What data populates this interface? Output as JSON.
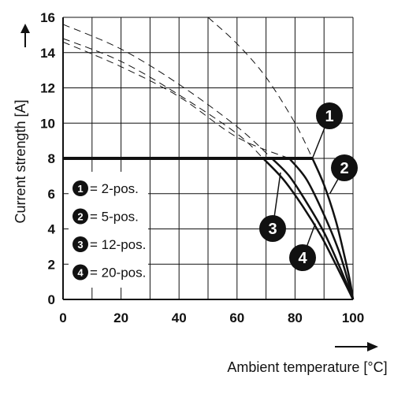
{
  "chart_data": {
    "type": "line",
    "title": "",
    "xlabel": "Ambient temperature [°C]",
    "ylabel": "Current strength [A]",
    "xlim": [
      0,
      100
    ],
    "ylim": [
      0,
      16
    ],
    "x_ticks": [
      0,
      20,
      40,
      60,
      80,
      100
    ],
    "y_ticks": [
      0,
      2,
      4,
      6,
      8,
      10,
      12,
      14,
      16
    ],
    "grid": true,
    "legend_position": "bottom-left",
    "legend": [
      {
        "marker": "1",
        "label": "= 2-pos."
      },
      {
        "marker": "2",
        "label": "= 5-pos."
      },
      {
        "marker": "3",
        "label": "= 12-pos."
      },
      {
        "marker": "4",
        "label": "= 20-pos."
      }
    ],
    "limit": {
      "x": [
        0,
        69
      ],
      "y": 8
    },
    "series": [
      {
        "marker": "1",
        "x": [
          0,
          86,
          90,
          94,
          97,
          99,
          100
        ],
        "y": [
          8,
          8,
          6.5,
          4.5,
          2.5,
          1,
          0
        ]
      },
      {
        "marker": "2",
        "x": [
          0,
          78,
          84,
          90,
          95,
          98,
          100
        ],
        "y": [
          8,
          8,
          6.8,
          4.8,
          2.8,
          1.2,
          0
        ]
      },
      {
        "marker": "3",
        "x": [
          0,
          72,
          78,
          84,
          90,
          95,
          100
        ],
        "y": [
          8,
          8,
          7,
          5.5,
          3.8,
          2,
          0
        ]
      },
      {
        "marker": "4",
        "x": [
          0,
          69,
          76,
          83,
          89,
          94,
          100
        ],
        "y": [
          8,
          8,
          6.8,
          5.2,
          3.6,
          2,
          0
        ]
      }
    ],
    "derating_curves_dashed": [
      {
        "x": [
          0,
          20,
          40,
          60,
          72
        ],
        "y": [
          15.6,
          14.2,
          12.2,
          9.8,
          8
        ]
      },
      {
        "x": [
          0,
          20,
          40,
          60,
          69
        ],
        "y": [
          14.8,
          13.5,
          11.6,
          9.4,
          8
        ]
      },
      {
        "x": [
          0,
          20,
          40,
          60,
          78
        ],
        "y": [
          14.6,
          13.2,
          11.5,
          9.2,
          8
        ]
      },
      {
        "x": [
          50,
          60,
          70,
          80,
          86
        ],
        "y": [
          16,
          14.5,
          12.6,
          10,
          8
        ]
      }
    ],
    "colors": {
      "line": "#111111",
      "grid": "#111111",
      "badge": "#111111"
    }
  }
}
